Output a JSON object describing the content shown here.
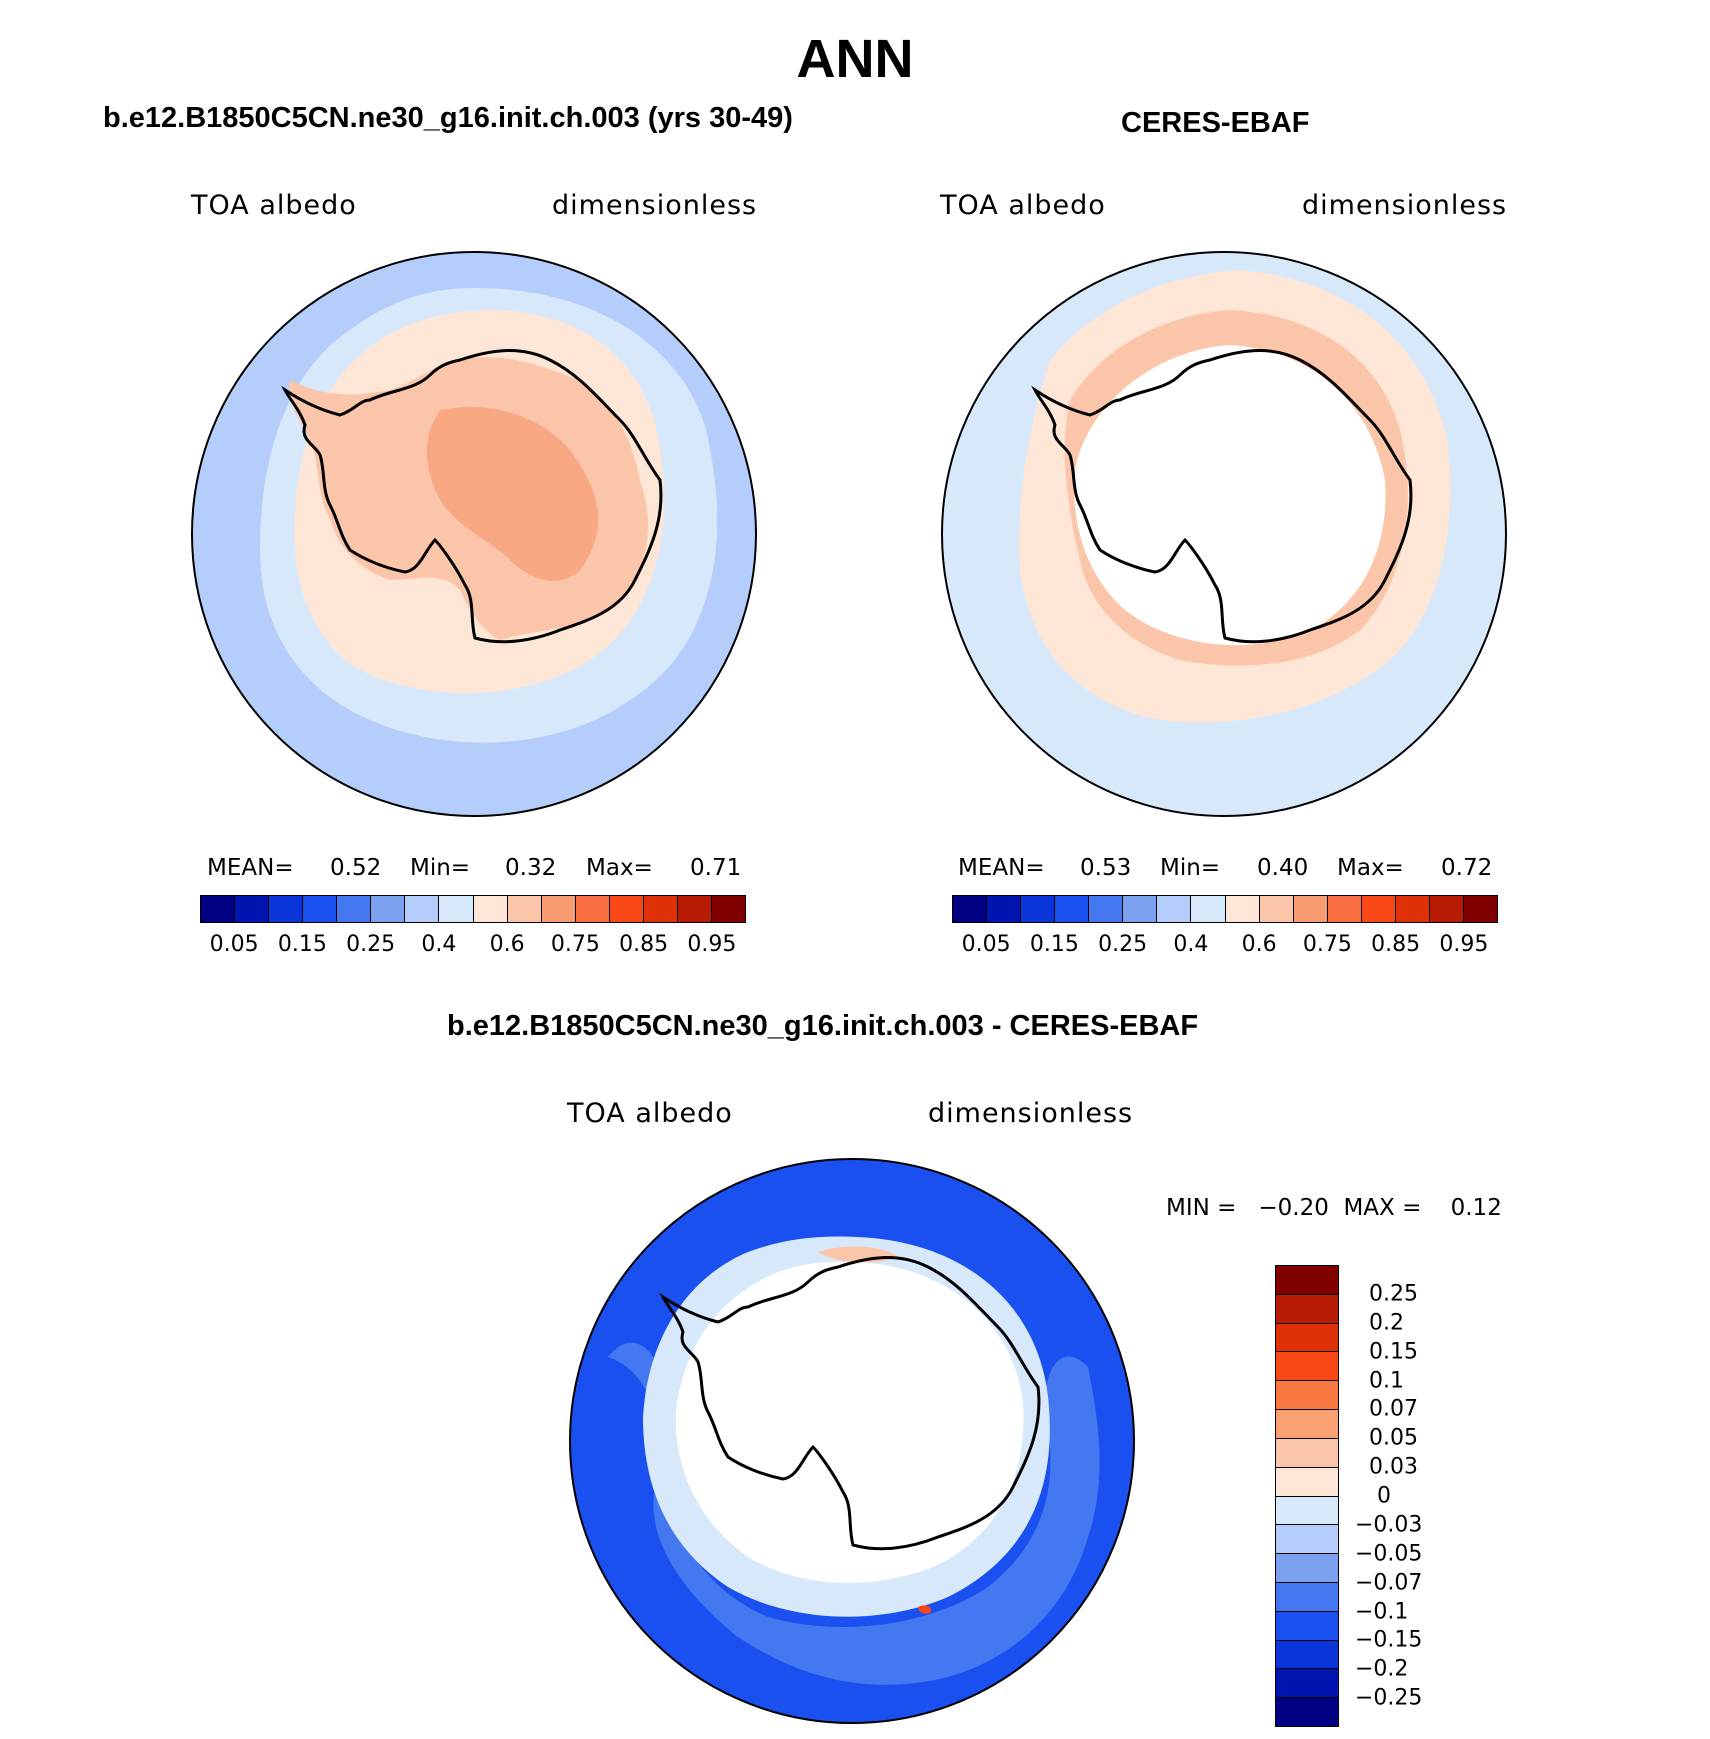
{
  "title": "ANN",
  "panels": {
    "model": {
      "title": "b.e12.B1850C5CN.ne30_g16.init.ch.003 (yrs 30-49)",
      "left_label": "TOA albedo",
      "right_label": "dimensionless",
      "mean_label": "MEAN=",
      "mean_value": "0.52",
      "min_label": "Min=",
      "min_value": "0.32",
      "max_label": "Max=",
      "max_value": "0.71"
    },
    "obs": {
      "title": "CERES-EBAF",
      "left_label": "TOA albedo",
      "right_label": "dimensionless",
      "mean_label": "MEAN=",
      "mean_value": "0.53",
      "min_label": "Min=",
      "min_value": "0.40",
      "max_label": "Max=",
      "max_value": "0.72"
    },
    "diff": {
      "title": "b.e12.B1850C5CN.ne30_g16.init.ch.003 - CERES-EBAF",
      "left_label": "TOA albedo",
      "right_label": "dimensionless",
      "minmax_text": "MIN =   −0.20  MAX =    0.12"
    }
  },
  "colorbar_abs": {
    "colors": [
      "#000080",
      "#0015b0",
      "#0a35d8",
      "#1a50f0",
      "#4478f0",
      "#7ca0f0",
      "#b4cdfa",
      "#d7e8fb",
      "#fde6d6",
      "#fbc5aa",
      "#f89a70",
      "#f86e40",
      "#f84818",
      "#e03008",
      "#b81c04",
      "#800000"
    ],
    "tick_labels": [
      "0.05",
      "0.15",
      "0.25",
      "0.4",
      "0.6",
      "0.75",
      "0.85",
      "0.95"
    ]
  },
  "colorbar_diff": {
    "colors": [
      "#800000",
      "#b81c04",
      "#e03008",
      "#f84818",
      "#f87840",
      "#fba070",
      "#fbc5aa",
      "#fde6d6",
      "#d7e8fb",
      "#b4cdfa",
      "#7ca0f0",
      "#4478f0",
      "#1a50f0",
      "#0a35d8",
      "#0015b0",
      "#000080"
    ],
    "tick_labels": [
      "0.25",
      "0.2",
      "0.15",
      "0.1",
      "0.07",
      "0.05",
      "0.03",
      "0",
      "−0.03",
      "−0.05",
      "−0.07",
      "−0.1",
      "−0.15",
      "−0.2",
      "−0.25"
    ]
  },
  "map_colors": {
    "outer_ocean": "#b4cdfa",
    "mid_ocean": "#d7e8fb",
    "ice_band_light": "#fde6d6",
    "ice_band_med": "#fbc5aa",
    "interior_high": "#f8a882",
    "missing": "#ffffff",
    "diff_ocean": "#1a50f0",
    "diff_ocean_light": "#4478f0",
    "diff_ring": "#d7e8fb",
    "coastline": "#000000"
  }
}
